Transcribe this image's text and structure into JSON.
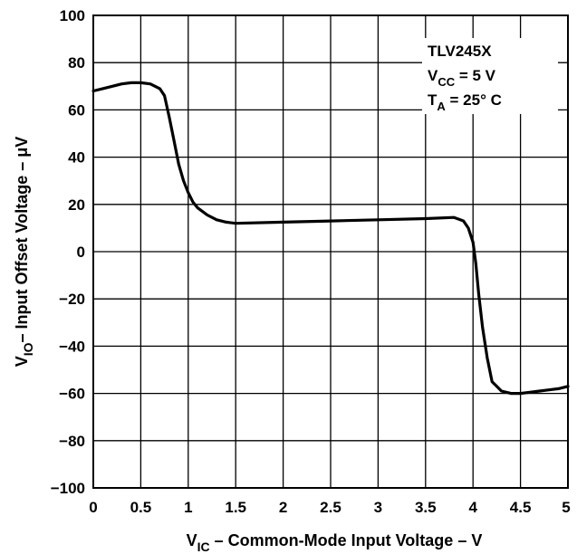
{
  "chart_data": {
    "type": "line",
    "title": "",
    "xlabel": {
      "main": "V",
      "sub": "IC",
      "rest": " – Common-Mode Input Voltage – V"
    },
    "ylabel": {
      "main": "V",
      "sub": "IO",
      "rest": "– Input Offset Voltage –  μV"
    },
    "xlim": [
      0,
      5
    ],
    "ylim": [
      -100,
      100
    ],
    "grid": true,
    "x_ticks": [
      "0",
      "0.5",
      "1",
      "1.5",
      "2",
      "2.5",
      "3",
      "3.5",
      "4",
      "4.5",
      "5"
    ],
    "y_ticks": [
      "100",
      "80",
      "60",
      "40",
      "20",
      "0",
      "-20",
      "-40",
      "-60",
      "-80",
      "-100"
    ],
    "annotation": {
      "line1": "TLV245X",
      "line2": {
        "main": "V",
        "sub": "CC",
        "rest": " = 5 V"
      },
      "line3": {
        "main": "T",
        "sub": "A",
        "rest": " = 25° C"
      }
    },
    "series": [
      {
        "x": [
          0,
          0.1,
          0.2,
          0.3,
          0.4,
          0.5,
          0.6,
          0.7,
          0.75,
          0.8,
          0.85,
          0.9,
          0.95,
          1.0,
          1.05,
          1.1,
          1.2,
          1.3,
          1.4,
          1.5,
          2.0,
          2.5,
          3.0,
          3.5,
          3.8,
          3.9,
          3.95,
          4.0,
          4.03,
          4.06,
          4.1,
          4.15,
          4.2,
          4.25,
          4.3,
          4.4,
          4.5,
          4.6,
          4.7,
          4.8,
          4.9,
          5.0
        ],
        "y": [
          68,
          69,
          70,
          71,
          71.5,
          71.5,
          71,
          69,
          66,
          57,
          47,
          37,
          30,
          25,
          21,
          18.5,
          15.5,
          13.5,
          12.5,
          12,
          12.5,
          13,
          13.5,
          14,
          14.5,
          13,
          10,
          4,
          -5,
          -18,
          -32,
          -45,
          -55,
          -57,
          -59,
          -60,
          -60,
          -59.5,
          -59,
          -58.5,
          -58,
          -57
        ]
      }
    ]
  }
}
